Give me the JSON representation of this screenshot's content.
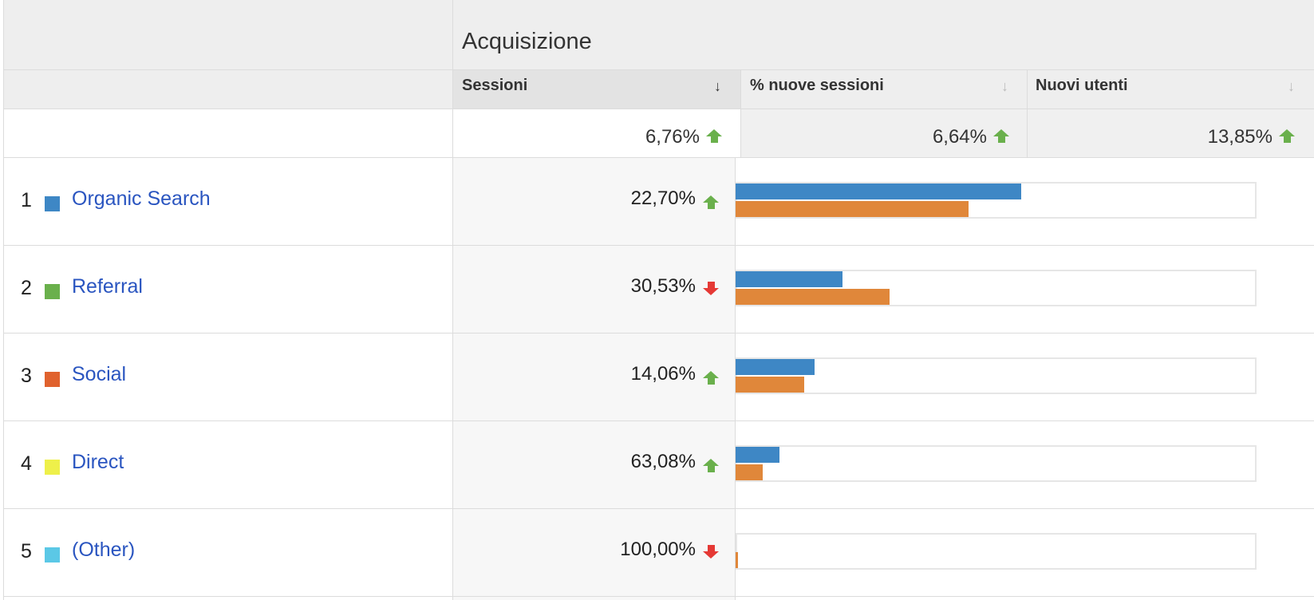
{
  "table": {
    "group_title": "Acquisizione",
    "columns": [
      {
        "label": "Sessioni",
        "total": "6,76%",
        "total_trend": "up",
        "sorted": true
      },
      {
        "label": "% nuove sessioni",
        "total": "6,64%",
        "total_trend": "up",
        "sorted": false
      },
      {
        "label": "Nuovi utenti",
        "total": "13,85%",
        "total_trend": "up",
        "sorted": false
      }
    ],
    "rows": [
      {
        "index": "1",
        "label": "Organic Search",
        "swatch_color": "#3e87c5",
        "value": "22,70%",
        "trend": "up",
        "bar_current": 0.551,
        "bar_previous": 0.45
      },
      {
        "index": "2",
        "label": "Referral",
        "swatch_color": "#6ab04c",
        "value": "30,53%",
        "trend": "down",
        "bar_current": 0.207,
        "bar_previous": 0.298
      },
      {
        "index": "3",
        "label": "Social",
        "swatch_color": "#e0622e",
        "value": "14,06%",
        "trend": "up",
        "bar_current": 0.152,
        "bar_previous": 0.133
      },
      {
        "index": "4",
        "label": "Direct",
        "swatch_color": "#eef04a",
        "value": "63,08%",
        "trend": "up",
        "bar_current": 0.085,
        "bar_previous": 0.052
      },
      {
        "index": "5",
        "label": "(Other)",
        "swatch_color": "#5bc8e6",
        "value": "100,00%",
        "trend": "down",
        "bar_current": 0.0,
        "bar_previous": 0.004
      }
    ]
  },
  "colors": {
    "current_bar": "#3e87c5",
    "previous_bar": "#e0873a",
    "trend_up": "#6ab04c",
    "trend_down": "#e53935",
    "link": "#2a55c0"
  }
}
